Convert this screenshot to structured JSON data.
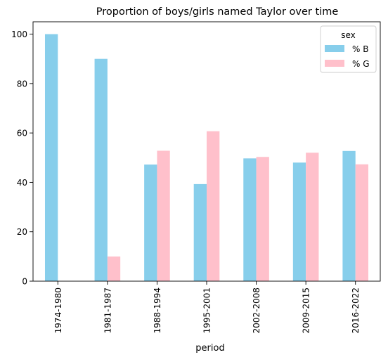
{
  "chart_data": {
    "type": "bar",
    "title": "Proportion of boys/girls named Taylor over time",
    "xlabel": "period",
    "ylabel": "",
    "categories": [
      "1974-1980",
      "1981-1987",
      "1988-1994",
      "1995-2001",
      "2002-2008",
      "2009-2015",
      "2016-2022"
    ],
    "series": [
      {
        "name": "% B",
        "color": "#87ceeb",
        "values": [
          100,
          90,
          47.2,
          39.3,
          49.7,
          48.0,
          52.7
        ]
      },
      {
        "name": "% G",
        "color": "#ffc0cb",
        "values": [
          0,
          10,
          52.8,
          60.7,
          50.3,
          52.0,
          47.3
        ]
      }
    ],
    "ylim": [
      0,
      105
    ],
    "yticks": [
      0,
      20,
      40,
      60,
      80,
      100
    ],
    "legend": {
      "title": "sex",
      "position": "top-right"
    },
    "grid": false
  }
}
